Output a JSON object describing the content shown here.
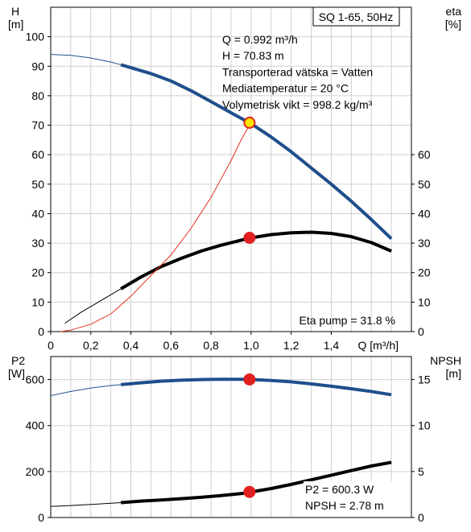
{
  "chart_data": [
    {
      "type": "line",
      "title": "SQ 1-65, 50Hz",
      "xlabel": "Q [m³/h]",
      "ylabel_left": [
        "H",
        "[m]"
      ],
      "ylabel_right": [
        "eta",
        "[%]"
      ],
      "xlim": [
        0,
        1.8
      ],
      "ylim_left": [
        0,
        110
      ],
      "ylim_right": [
        0,
        110
      ],
      "x_ticks": [
        "0",
        "0,2",
        "0,4",
        "0,6",
        "0,8",
        "1,0",
        "1,2",
        "1,4"
      ],
      "y_ticks_left": [
        "0",
        "10",
        "20",
        "30",
        "40",
        "50",
        "60",
        "70",
        "80",
        "90",
        "100"
      ],
      "y_ticks_right": [
        "0",
        "10",
        "20",
        "30",
        "40",
        "50",
        "60"
      ],
      "grid": true,
      "info_lines": [
        "Q = 0.992 m³/h",
        "H = 70.83 m",
        "Transporterad vätska = Vatten",
        "Mediatemperatur = 20 °C",
        "Volymetrisk vikt = 998.2 kg/m³"
      ],
      "annotation": "Eta pump = 31.8 %",
      "series": [
        {
          "axis": "left",
          "color": "#1f4e8c",
          "thin_x": [
            0,
            0.1,
            0.2,
            0.3,
            0.35
          ],
          "thin_y": [
            94,
            93.7,
            92.8,
            91.4,
            90.5
          ],
          "x": [
            0.35,
            0.4,
            0.5,
            0.6,
            0.7,
            0.8,
            0.9,
            1.0,
            1.1,
            1.2,
            1.3,
            1.4,
            1.5,
            1.6,
            1.7
          ],
          "y": [
            90.5,
            89.5,
            87.5,
            85,
            81.7,
            78,
            74.2,
            70.5,
            66,
            61,
            55.5,
            50,
            44.2,
            38,
            31.5
          ]
        },
        {
          "axis": "right",
          "color": "#000000",
          "thin_x": [
            0.07,
            0.15,
            0.25,
            0.35
          ],
          "thin_y": [
            2.8,
            6.5,
            10.5,
            14.5
          ],
          "x": [
            0.35,
            0.45,
            0.55,
            0.65,
            0.75,
            0.85,
            0.95,
            1.0,
            1.1,
            1.2,
            1.3,
            1.4,
            1.5,
            1.6,
            1.7
          ],
          "y": [
            14.5,
            18.5,
            22,
            24.8,
            27.3,
            29.3,
            31,
            31.8,
            32.9,
            33.5,
            33.7,
            33.3,
            32.2,
            30.2,
            27.3
          ]
        },
        {
          "axis": "left",
          "color": "#e03020",
          "thin_x": [
            0.05,
            0.1,
            0.2,
            0.3,
            0.4,
            0.5,
            0.6,
            0.7,
            0.8,
            0.9,
            0.95,
            1.0,
            1.0
          ],
          "thin_y": [
            0,
            0.5,
            2.5,
            6,
            12,
            19,
            26,
            35,
            45.5,
            58,
            65,
            71,
            73
          ]
        }
      ],
      "markers": [
        {
          "x": 0.992,
          "y": 70.83,
          "axis": "left",
          "fill": "#ffe600",
          "stroke": "#e02020"
        },
        {
          "x": 0.992,
          "y": 31.8,
          "axis": "right",
          "fill": "#e02020",
          "stroke": "#e02020"
        }
      ]
    },
    {
      "type": "line",
      "ylabel_left": [
        "P2",
        "[W]"
      ],
      "ylabel_right": [
        "NPSH",
        "[m]"
      ],
      "xlim": [
        0,
        1.8
      ],
      "ylim_left": [
        0,
        700
      ],
      "ylim_right": [
        0,
        17.5
      ],
      "y_ticks_left": [
        "0",
        "200",
        "400",
        "600"
      ],
      "y_ticks_right": [
        "0",
        "5",
        "10",
        "15"
      ],
      "grid": true,
      "info_lines": [
        "P2 = 600.3 W",
        "NPSH = 2.78 m"
      ],
      "series": [
        {
          "axis": "left",
          "color": "#1f4e8c",
          "thin_x": [
            0,
            0.1,
            0.2,
            0.3,
            0.35
          ],
          "thin_y": [
            530,
            548,
            563,
            574,
            578
          ],
          "x": [
            0.35,
            0.45,
            0.55,
            0.65,
            0.75,
            0.85,
            0.95,
            1.0,
            1.1,
            1.2,
            1.3,
            1.4,
            1.5,
            1.6,
            1.7
          ],
          "y": [
            578,
            586,
            593,
            597,
            600,
            601,
            601,
            600.3,
            596,
            590,
            581,
            571,
            560,
            548,
            534
          ]
        },
        {
          "axis": "right",
          "color": "#000000",
          "thin_x": [
            0,
            0.1,
            0.2,
            0.3,
            0.35
          ],
          "thin_y": [
            1.2,
            1.3,
            1.42,
            1.55,
            1.62
          ],
          "x": [
            0.35,
            0.45,
            0.55,
            0.65,
            0.75,
            0.85,
            0.95,
            1.0,
            1.1,
            1.2,
            1.3,
            1.4,
            1.5,
            1.6,
            1.7
          ],
          "y": [
            1.62,
            1.78,
            1.9,
            2.05,
            2.2,
            2.38,
            2.6,
            2.78,
            3.15,
            3.6,
            4.1,
            4.6,
            5.1,
            5.6,
            6.0
          ]
        }
      ],
      "markers": [
        {
          "x": 0.992,
          "y": 600.3,
          "axis": "left",
          "fill": "#e02020",
          "stroke": "#e02020"
        },
        {
          "x": 0.992,
          "y": 2.78,
          "axis": "right",
          "fill": "#e02020",
          "stroke": "#e02020"
        }
      ]
    }
  ]
}
